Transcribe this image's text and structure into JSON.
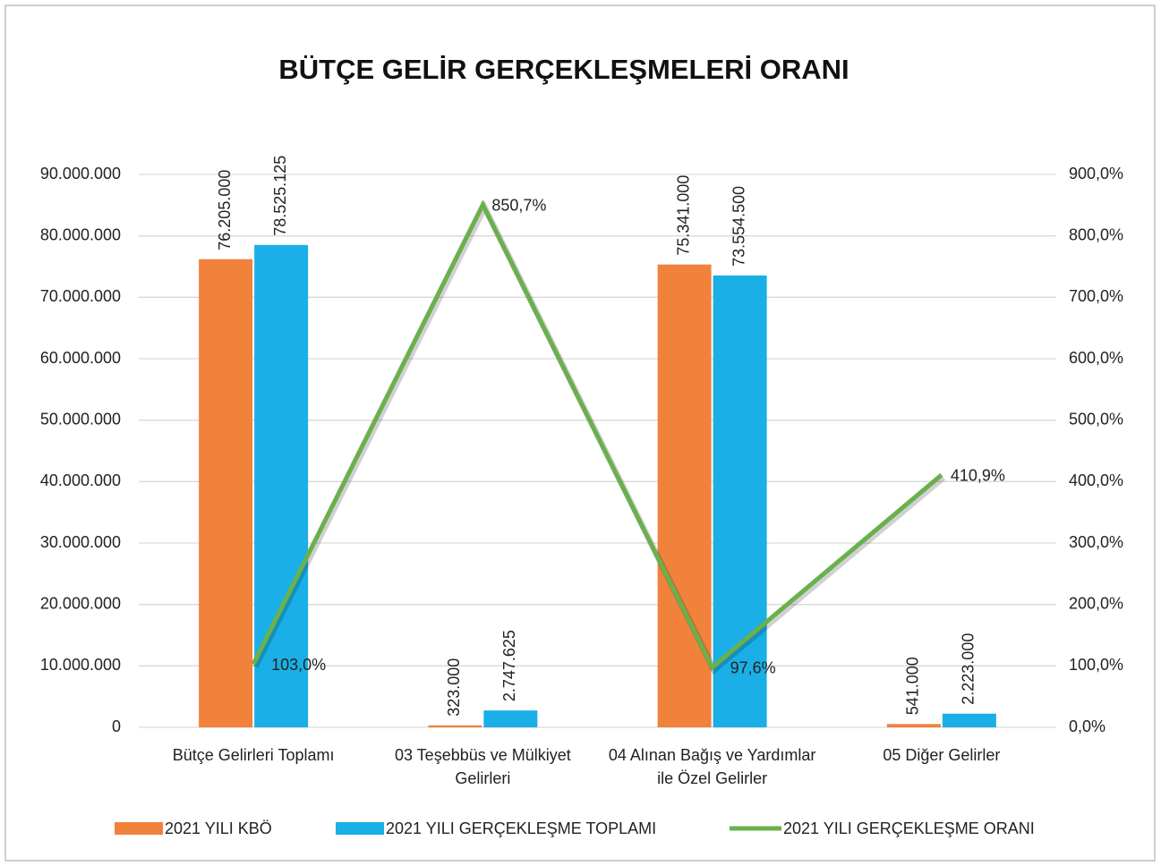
{
  "chart_data": {
    "type": "bar",
    "title": "BÜTÇE GELİR GERÇEKLEŞMELERİ ORANI",
    "categories": [
      "Bütçe Gelirleri Toplamı",
      "03 Teşebbüs ve Mülkiyet Gelirleri",
      "04 Alınan Bağış ve Yardımlar ile Özel Gelirler",
      "05 Diğer Gelirler"
    ],
    "series": [
      {
        "name": "2021 YILI KBÖ",
        "color": "#f0823c",
        "values": [
          76205000,
          323000,
          75341000,
          541000
        ],
        "value_labels": [
          "76.205.000",
          "323.000",
          "75.341.000",
          "541.000"
        ]
      },
      {
        "name": "2021 YILI GERÇEKLEŞME TOPLAMI",
        "color": "#1aafe6",
        "values": [
          78525125,
          2747625,
          73554500,
          2223000
        ],
        "value_labels": [
          "78.525.125",
          "2.747.625",
          "73.554.500",
          "2.223.000"
        ]
      },
      {
        "name": "2021 YILI GERÇEKLEŞME ORANI",
        "color": "#6ab04c",
        "type": "line",
        "axis": "y2",
        "values": [
          103.0,
          850.7,
          97.6,
          410.9
        ],
        "value_labels": [
          "103,0%",
          "850,7%",
          "97,6%",
          "410,9%"
        ]
      }
    ],
    "ylim": [
      0,
      90000000
    ],
    "yticks": [
      0,
      {
        "value": 10000000,
        "label": "10.000.000"
      },
      {
        "value": 20000000,
        "label": "20.000.000"
      },
      {
        "value": 30000000,
        "label": "30.000.000"
      },
      {
        "value": 40000000,
        "label": "40.000.000"
      },
      {
        "value": 50000000,
        "label": "50.000.000"
      },
      {
        "value": 60000000,
        "label": "60.000.000"
      },
      {
        "value": 70000000,
        "label": "70.000.000"
      },
      {
        "value": 80000000,
        "label": "80.000.000"
      },
      {
        "value": 90000000,
        "label": "90.000.000"
      }
    ],
    "y2lim": [
      0,
      900
    ],
    "y2ticks": [
      {
        "value": 0,
        "label": "0,0%"
      },
      {
        "value": 100,
        "label": "100,0%"
      },
      {
        "value": 200,
        "label": "200,0%"
      },
      {
        "value": 300,
        "label": "300,0%"
      },
      {
        "value": 400,
        "label": "400,0%"
      },
      {
        "value": 500,
        "label": "500,0%"
      },
      {
        "value": 600,
        "label": "600,0%"
      },
      {
        "value": 700,
        "label": "700,0%"
      },
      {
        "value": 800,
        "label": "800,0%"
      },
      {
        "value": 900,
        "label": "900,0%"
      }
    ],
    "grid": true,
    "legend": "bottom"
  }
}
